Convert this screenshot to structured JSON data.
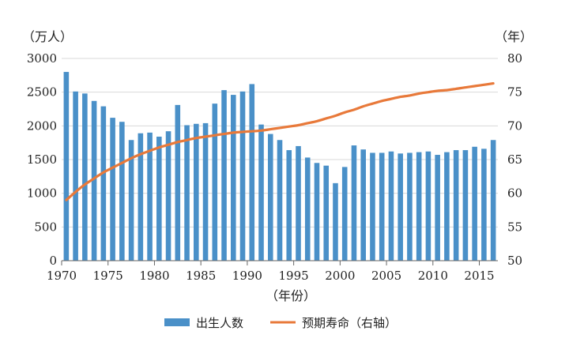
{
  "chart_data": {
    "type": "bar+line",
    "left_unit": "（万人）",
    "right_unit": "（年）",
    "xlabel": "（年份）",
    "x": [
      1970,
      1971,
      1972,
      1973,
      1974,
      1975,
      1976,
      1977,
      1978,
      1979,
      1980,
      1981,
      1982,
      1983,
      1984,
      1985,
      1986,
      1987,
      1988,
      1989,
      1990,
      1991,
      1992,
      1993,
      1994,
      1995,
      1996,
      1997,
      1998,
      1999,
      2000,
      2001,
      2002,
      2003,
      2004,
      2005,
      2006,
      2007,
      2008,
      2009,
      2010,
      2011,
      2012,
      2013,
      2014,
      2015,
      2016
    ],
    "xticks": [
      1970,
      1975,
      1980,
      1985,
      1990,
      1995,
      2000,
      2005,
      2010,
      2015
    ],
    "xlim": [
      1970,
      2017
    ],
    "ylim_left": [
      0,
      3000
    ],
    "yticks_left": [
      0,
      500,
      1000,
      1500,
      2000,
      2500,
      3000
    ],
    "ylim_right": [
      50,
      80
    ],
    "yticks_right": [
      50,
      55,
      60,
      65,
      70,
      75,
      80
    ],
    "grid": "horizontal",
    "legend_position": "bottom",
    "series": [
      {
        "name": "出生人数",
        "type": "bar",
        "axis": "left",
        "color": "#4a90c8",
        "values": [
          2800,
          2510,
          2480,
          2370,
          2290,
          2120,
          2060,
          1790,
          1890,
          1900,
          1840,
          1920,
          2310,
          2010,
          2030,
          2040,
          2330,
          2530,
          2460,
          2510,
          2620,
          2020,
          1880,
          1790,
          1640,
          1700,
          1530,
          1450,
          1410,
          1150,
          1390,
          1710,
          1650,
          1600,
          1600,
          1620,
          1590,
          1600,
          1610,
          1620,
          1570,
          1610,
          1640,
          1640,
          1690,
          1660,
          1790
        ]
      },
      {
        "name": "预期寿命（右轴）",
        "type": "line",
        "axis": "right",
        "color": "#e8793a",
        "values": [
          59.0,
          60.2,
          61.3,
          62.2,
          63.1,
          63.8,
          64.5,
          65.2,
          65.8,
          66.3,
          66.8,
          67.2,
          67.6,
          67.9,
          68.2,
          68.4,
          68.6,
          68.8,
          69.0,
          69.1,
          69.2,
          69.3,
          69.5,
          69.7,
          69.9,
          70.1,
          70.4,
          70.7,
          71.1,
          71.5,
          72.0,
          72.4,
          72.9,
          73.3,
          73.7,
          74.0,
          74.3,
          74.5,
          74.8,
          75.0,
          75.2,
          75.3,
          75.5,
          75.7,
          75.9,
          76.1,
          76.3
        ]
      }
    ]
  }
}
